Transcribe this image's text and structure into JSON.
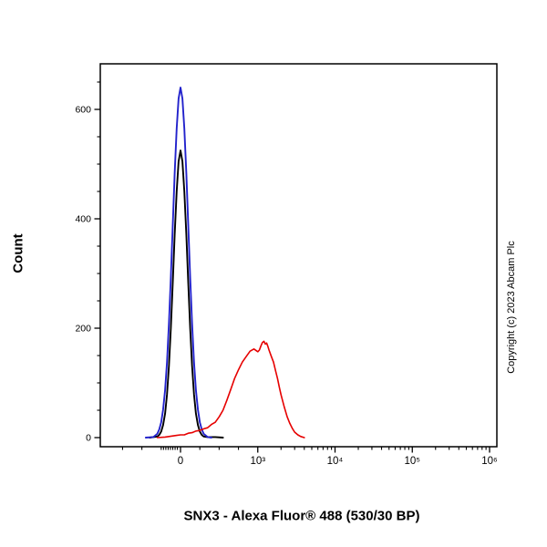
{
  "copyright": "Copyright (c) 2023 Abcam Plc",
  "chart_data": {
    "type": "line",
    "subtype": "flow-cytometry-histogram",
    "title": "",
    "xlabel": "SNX3 - Alexa Fluor® 488 (530/30 BP)",
    "ylabel": "Count",
    "x_scale": "biexponential (linear around 0, log above 10^3)",
    "grid": false,
    "legend": "none",
    "ylim": [
      0,
      685
    ],
    "y_ticks": [
      {
        "label": "0",
        "value": 0
      },
      {
        "label": "200",
        "value": 200
      },
      {
        "label": "400",
        "value": 400
      },
      {
        "label": "600",
        "value": 600
      }
    ],
    "x_ticks": [
      {
        "label": "0",
        "value": 0
      },
      {
        "label": "10³",
        "value": 1000
      },
      {
        "label": "10⁴",
        "value": 10000
      },
      {
        "label": "10⁵",
        "value": 100000
      },
      {
        "label": "10⁶",
        "value": 1000000
      }
    ],
    "series": [
      {
        "name": "black",
        "color": "#000000",
        "peak": {
          "x": 0,
          "count": 525
        },
        "points": [
          [
            -400,
            0
          ],
          [
            -300,
            2
          ],
          [
            -275,
            5
          ],
          [
            -250,
            11
          ],
          [
            -225,
            23
          ],
          [
            -200,
            44
          ],
          [
            -175,
            79
          ],
          [
            -150,
            131
          ],
          [
            -125,
            200
          ],
          [
            -100,
            283
          ],
          [
            -75,
            371
          ],
          [
            -50,
            450
          ],
          [
            -25,
            505
          ],
          [
            0,
            525
          ],
          [
            25,
            505
          ],
          [
            50,
            450
          ],
          [
            75,
            371
          ],
          [
            100,
            283
          ],
          [
            125,
            200
          ],
          [
            150,
            131
          ],
          [
            175,
            79
          ],
          [
            200,
            44
          ],
          [
            225,
            23
          ],
          [
            250,
            11
          ],
          [
            275,
            5
          ],
          [
            300,
            2
          ],
          [
            350,
            1
          ],
          [
            450,
            1
          ],
          [
            550,
            0
          ]
        ]
      },
      {
        "name": "blue",
        "color": "#2222cc",
        "peak": {
          "x": 0,
          "count": 640
        },
        "points": [
          [
            -450,
            0
          ],
          [
            -350,
            1
          ],
          [
            -300,
            7
          ],
          [
            -275,
            15
          ],
          [
            -250,
            28
          ],
          [
            -225,
            51
          ],
          [
            -200,
            87
          ],
          [
            -175,
            138
          ],
          [
            -150,
            208
          ],
          [
            -125,
            293
          ],
          [
            -100,
            388
          ],
          [
            -75,
            483
          ],
          [
            -50,
            565
          ],
          [
            -25,
            620
          ],
          [
            0,
            640
          ],
          [
            25,
            620
          ],
          [
            50,
            565
          ],
          [
            75,
            483
          ],
          [
            100,
            388
          ],
          [
            125,
            293
          ],
          [
            150,
            208
          ],
          [
            175,
            138
          ],
          [
            200,
            87
          ],
          [
            225,
            51
          ],
          [
            250,
            28
          ],
          [
            275,
            15
          ],
          [
            300,
            7
          ],
          [
            350,
            1
          ],
          [
            400,
            0
          ]
        ]
      },
      {
        "name": "red",
        "color": "#e60000",
        "peak": {
          "x": 1200,
          "count": 176
        },
        "points": [
          [
            -300,
            0
          ],
          [
            -200,
            1
          ],
          [
            -100,
            3
          ],
          [
            -50,
            4
          ],
          [
            0,
            5
          ],
          [
            50,
            5
          ],
          [
            100,
            8
          ],
          [
            150,
            9
          ],
          [
            200,
            12
          ],
          [
            250,
            13
          ],
          [
            300,
            16
          ],
          [
            350,
            18
          ],
          [
            400,
            24
          ],
          [
            450,
            28
          ],
          [
            500,
            38
          ],
          [
            550,
            50
          ],
          [
            600,
            68
          ],
          [
            650,
            88
          ],
          [
            700,
            108
          ],
          [
            750,
            124
          ],
          [
            800,
            138
          ],
          [
            850,
            148
          ],
          [
            900,
            158
          ],
          [
            950,
            162
          ],
          [
            1000,
            157
          ],
          [
            1050,
            160
          ],
          [
            1100,
            168
          ],
          [
            1150,
            174
          ],
          [
            1200,
            176
          ],
          [
            1250,
            171
          ],
          [
            1300,
            173
          ],
          [
            1350,
            167
          ],
          [
            1400,
            160
          ],
          [
            1500,
            148
          ],
          [
            1600,
            138
          ],
          [
            1700,
            122
          ],
          [
            1800,
            108
          ],
          [
            1900,
            92
          ],
          [
            2000,
            78
          ],
          [
            2200,
            56
          ],
          [
            2400,
            38
          ],
          [
            2600,
            26
          ],
          [
            2800,
            17
          ],
          [
            3000,
            10
          ],
          [
            3300,
            5
          ],
          [
            3600,
            2
          ],
          [
            4000,
            0
          ]
        ]
      }
    ]
  }
}
